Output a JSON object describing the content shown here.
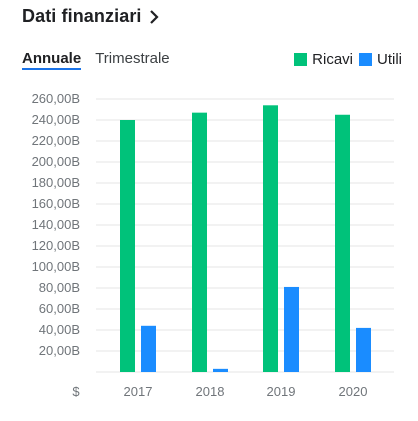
{
  "header": {
    "title": "Dati finanziari"
  },
  "tabs": [
    {
      "label": "Annuale",
      "active": true
    },
    {
      "label": "Trimestrale",
      "active": false
    }
  ],
  "legend": [
    {
      "label": "Ricavi",
      "color": "#00c27a"
    },
    {
      "label": "Utili",
      "color": "#1a8cff"
    }
  ],
  "currency_label": "$",
  "chart_data": {
    "type": "bar",
    "categories": [
      "2017",
      "2018",
      "2019",
      "2020"
    ],
    "series": [
      {
        "name": "Ricavi",
        "color": "#00c27a",
        "values": [
          240,
          247,
          254,
          245
        ]
      },
      {
        "name": "Utili",
        "color": "#1a8cff",
        "values": [
          44,
          3,
          81,
          42
        ]
      }
    ],
    "y_unit": "B",
    "ylim": [
      0,
      260
    ],
    "ytick_labels": [
      "20,00B",
      "40,00B",
      "60,00B",
      "80,00B",
      "100,00B",
      "120,00B",
      "140,00B",
      "160,00B",
      "180,00B",
      "200,00B",
      "220,00B",
      "240,00B",
      "260,00B"
    ],
    "ytick_values": [
      20,
      40,
      60,
      80,
      100,
      120,
      140,
      160,
      180,
      200,
      220,
      240,
      260
    ],
    "grid": true
  }
}
